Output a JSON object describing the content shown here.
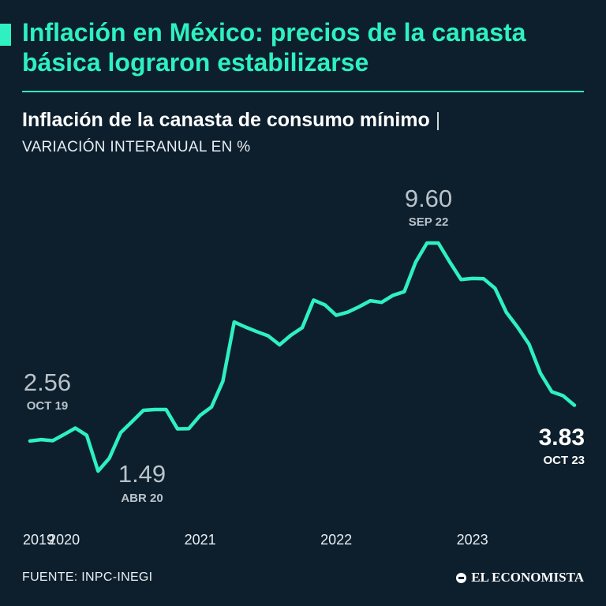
{
  "header": {
    "headline": "Inflación en México: precios de la canasta básica lograron estabilizarse",
    "accent_color": "#2ef0c0"
  },
  "chart_title": "Inflación de la canasta de consumo mínimo",
  "chart_title_separator": "|",
  "chart_subtitle": "VARIACIÓN INTERANUAL EN %",
  "footer": {
    "source": "FUENTE: INPC-INEGI",
    "logo_text": "EL ECONOMISTA",
    "logo_icon": "el-economista-logo-icon"
  },
  "chart_data": {
    "type": "line",
    "title": "Inflación de la canasta de consumo mínimo",
    "subtitle": "VARIACIÓN INTERANUAL EN %",
    "xlabel": "",
    "ylabel": "",
    "x": [
      "2019-10",
      "2019-11",
      "2019-12",
      "2020-01",
      "2020-02",
      "2020-03",
      "2020-04",
      "2020-05",
      "2020-06",
      "2020-07",
      "2020-08",
      "2020-09",
      "2020-10",
      "2020-11",
      "2020-12",
      "2021-01",
      "2021-02",
      "2021-03",
      "2021-04",
      "2021-05",
      "2021-06",
      "2021-07",
      "2021-08",
      "2021-09",
      "2021-10",
      "2021-11",
      "2021-12",
      "2022-01",
      "2022-02",
      "2022-03",
      "2022-04",
      "2022-05",
      "2022-06",
      "2022-07",
      "2022-08",
      "2022-09",
      "2022-10",
      "2022-11",
      "2022-12",
      "2023-01",
      "2023-02",
      "2023-03",
      "2023-04",
      "2023-05",
      "2023-06",
      "2023-07",
      "2023-08",
      "2023-09",
      "2023-10"
    ],
    "series": [
      {
        "name": "",
        "color": "#2ef0c0",
        "values": [
          2.56,
          2.61,
          2.57,
          2.79,
          3.02,
          2.76,
          1.49,
          1.95,
          2.86,
          3.25,
          3.65,
          3.68,
          3.68,
          2.99,
          3.0,
          3.47,
          3.77,
          4.68,
          6.79,
          6.61,
          6.45,
          6.3,
          5.98,
          6.32,
          6.59,
          7.57,
          7.4,
          7.03,
          7.14,
          7.33,
          7.55,
          7.49,
          7.74,
          7.87,
          8.92,
          9.6,
          9.6,
          8.93,
          8.3,
          8.34,
          8.33,
          7.99,
          7.13,
          6.6,
          6.0,
          4.97,
          4.31,
          4.17,
          3.83
        ]
      }
    ],
    "xticks": [
      "2019",
      "2020",
      "2021",
      "2022",
      "2023"
    ],
    "xtick_values": [
      "2019",
      "2020",
      "2021",
      "2022",
      "2023"
    ],
    "ylim": [
      0,
      10
    ],
    "grid": false,
    "legend": "none",
    "annotations": [
      {
        "value": "2.56",
        "date": "OCT 19",
        "x": "2019-10",
        "emphasis": false
      },
      {
        "value": "1.49",
        "date": "ABR 20",
        "x": "2020-04",
        "emphasis": false
      },
      {
        "value": "9.60",
        "date": "SEP 22",
        "x": "2022-09",
        "emphasis": false
      },
      {
        "value": "3.83",
        "date": "OCT 23",
        "x": "2023-10",
        "emphasis": true
      }
    ]
  }
}
